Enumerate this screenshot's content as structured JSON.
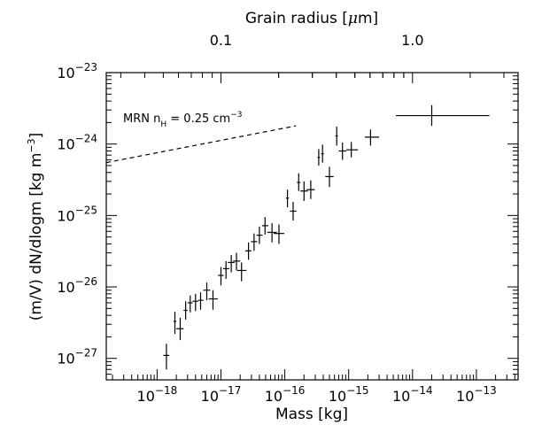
{
  "chart_data": {
    "type": "scatter",
    "xlabel": "Mass [kg]",
    "ylabel": "(m/V) dN/dlogm [kg m",
    "ylabel_sup": "−3",
    "ylabel_end": "]",
    "top_axis_label": "Grain radius [",
    "top_axis_label_mu": "μ",
    "top_axis_label_end": "m]",
    "x_scale": "log",
    "y_scale": "log",
    "xlim": [
      1.6e-19,
      4.5e-13
    ],
    "ylim": [
      5e-28,
      1e-23
    ],
    "x_ticks": [
      {
        "value": 1e-18,
        "base": "10",
        "exp": "−18"
      },
      {
        "value": 1e-17,
        "base": "10",
        "exp": "−17"
      },
      {
        "value": 1e-16,
        "base": "10",
        "exp": "−16"
      },
      {
        "value": 1e-15,
        "base": "10",
        "exp": "−15"
      },
      {
        "value": 1e-14,
        "base": "10",
        "exp": "−14"
      },
      {
        "value": 1e-13,
        "base": "10",
        "exp": "−13"
      }
    ],
    "y_ticks": [
      {
        "value": 1e-27,
        "base": "10",
        "exp": "−27"
      },
      {
        "value": 1e-26,
        "base": "10",
        "exp": "−26"
      },
      {
        "value": 1e-25,
        "base": "10",
        "exp": "−25"
      },
      {
        "value": 1e-24,
        "base": "10",
        "exp": "−24"
      },
      {
        "value": 1e-23,
        "base": "10",
        "exp": "−23"
      }
    ],
    "top_ticks": [
      {
        "label": "0.1",
        "mass": 1e-17
      },
      {
        "label": "1.0",
        "mass": 1e-14
      }
    ],
    "annotation": {
      "text": "MRN n",
      "sub": "H",
      "text_end": " = 0.25 cm",
      "sup": "−3"
    },
    "mrn_line": {
      "x": [
        1.6e-19,
        1.5e-16
      ],
      "y": [
        5.5e-25,
        1.8e-24
      ]
    },
    "points": [
      {
        "x": 1.4e-18,
        "y": 1.1e-27,
        "xerr": [
          1.25e-18,
          1.55e-18
        ],
        "yerr": [
          7e-28,
          1.6e-27
        ]
      },
      {
        "x": 1.9e-18,
        "y": 3.3e-27,
        "xerr": [
          1.8e-18,
          2e-18
        ],
        "yerr": [
          2.2e-27,
          4.5e-27
        ]
      },
      {
        "x": 2.3e-18,
        "y": 2.6e-27,
        "xerr": [
          2e-18,
          2.6e-18
        ],
        "yerr": [
          1.8e-27,
          3.7e-27
        ]
      },
      {
        "x": 2.8e-18,
        "y": 4.7e-27,
        "xerr": [
          2.6e-18,
          3e-18
        ],
        "yerr": [
          3.5e-27,
          6.3e-27
        ]
      },
      {
        "x": 3.3e-18,
        "y": 6e-27,
        "xerr": [
          3e-18,
          3.6e-18
        ],
        "yerr": [
          4.4e-27,
          7.6e-27
        ]
      },
      {
        "x": 4e-18,
        "y": 6.3e-27,
        "xerr": [
          3.6e-18,
          4.4e-18
        ],
        "yerr": [
          4.6e-27,
          8e-27
        ]
      },
      {
        "x": 4.8e-18,
        "y": 6.5e-27,
        "xerr": [
          4.4e-18,
          5.3e-18
        ],
        "yerr": [
          4.8e-27,
          8.4e-27
        ]
      },
      {
        "x": 6e-18,
        "y": 9e-27,
        "xerr": [
          5.3e-18,
          6.8e-18
        ],
        "yerr": [
          6.5e-27,
          1.15e-26
        ]
      },
      {
        "x": 7.5e-18,
        "y": 6.8e-27,
        "xerr": [
          6.4e-18,
          8.9e-18
        ],
        "yerr": [
          4.8e-27,
          9e-27
        ]
      },
      {
        "x": 1e-17,
        "y": 1.45e-26,
        "xerr": [
          9e-18,
          1.1e-17
        ],
        "yerr": [
          1.05e-26,
          1.9e-26
        ]
      },
      {
        "x": 1.2e-17,
        "y": 1.8e-26,
        "xerr": [
          1.08e-17,
          1.35e-17
        ],
        "yerr": [
          1.3e-26,
          2.3e-26
        ]
      },
      {
        "x": 1.45e-17,
        "y": 2.2e-26,
        "xerr": [
          1.28e-17,
          1.63e-17
        ],
        "yerr": [
          1.6e-26,
          2.8e-26
        ]
      },
      {
        "x": 1.75e-17,
        "y": 2.3e-26,
        "xerr": [
          1.55e-17,
          2e-17
        ],
        "yerr": [
          1.7e-26,
          3e-26
        ]
      },
      {
        "x": 2.1e-17,
        "y": 1.7e-26,
        "xerr": [
          1.8e-17,
          2.5e-17
        ],
        "yerr": [
          1.2e-26,
          2.2e-26
        ]
      },
      {
        "x": 2.7e-17,
        "y": 3.2e-26,
        "xerr": [
          2.4e-17,
          3e-17
        ],
        "yerr": [
          2.4e-26,
          4.2e-26
        ]
      },
      {
        "x": 3.3e-17,
        "y": 4.3e-26,
        "xerr": [
          2.95e-17,
          3.7e-17
        ],
        "yerr": [
          3.2e-26,
          5.6e-26
        ]
      },
      {
        "x": 4e-17,
        "y": 5.3e-26,
        "xerr": [
          3.6e-17,
          4.5e-17
        ],
        "yerr": [
          4e-26,
          7e-26
        ]
      },
      {
        "x": 4.9e-17,
        "y": 7.2e-26,
        "xerr": [
          4.4e-17,
          5.5e-17
        ],
        "yerr": [
          5.4e-26,
          9.5e-26
        ]
      },
      {
        "x": 6.3e-17,
        "y": 5.8e-26,
        "xerr": [
          5.3e-17,
          7.5e-17
        ],
        "yerr": [
          4.2e-26,
          7.8e-26
        ]
      },
      {
        "x": 8.1e-17,
        "y": 5.6e-26,
        "xerr": [
          6.7e-17,
          9.8e-17
        ],
        "yerr": [
          4e-26,
          7.5e-26
        ]
      },
      {
        "x": 1.1e-16,
        "y": 1.75e-25,
        "xerr": [
          1.04e-16,
          1.16e-16
        ],
        "yerr": [
          1.3e-25,
          2.3e-25
        ]
      },
      {
        "x": 1.35e-16,
        "y": 1.15e-25,
        "xerr": [
          1.2e-16,
          1.52e-16
        ],
        "yerr": [
          8.5e-26,
          1.55e-25
        ]
      },
      {
        "x": 1.65e-16,
        "y": 2.9e-25,
        "xerr": [
          1.55e-16,
          1.76e-16
        ],
        "yerr": [
          2.2e-25,
          3.9e-25
        ]
      },
      {
        "x": 2e-16,
        "y": 2.2e-25,
        "xerr": [
          1.75e-16,
          2.3e-16
        ],
        "yerr": [
          1.6e-25,
          3e-25
        ]
      },
      {
        "x": 2.55e-16,
        "y": 2.3e-25,
        "xerr": [
          2.2e-16,
          2.95e-16
        ],
        "yerr": [
          1.7e-25,
          3.1e-25
        ]
      },
      {
        "x": 3.4e-16,
        "y": 6.5e-25,
        "xerr": [
          3.25e-16,
          3.55e-16
        ],
        "yerr": [
          5e-25,
          8.5e-25
        ]
      },
      {
        "x": 3.9e-16,
        "y": 7.3e-25,
        "xerr": [
          3.7e-16,
          4.1e-16
        ],
        "yerr": [
          5.5e-25,
          9.8e-25
        ]
      },
      {
        "x": 5e-16,
        "y": 3.5e-25,
        "xerr": [
          4.3e-16,
          5.8e-16
        ],
        "yerr": [
          2.5e-25,
          4.8e-25
        ]
      },
      {
        "x": 6.5e-16,
        "y": 1.3e-24,
        "xerr": [
          6.2e-16,
          6.8e-16
        ],
        "yerr": [
          9.5e-25,
          1.75e-24
        ]
      },
      {
        "x": 8e-16,
        "y": 8e-25,
        "xerr": [
          7e-16,
          9.2e-16
        ],
        "yerr": [
          6e-25,
          1.05e-24
        ]
      },
      {
        "x": 1.1e-15,
        "y": 8.3e-25,
        "xerr": [
          9.2e-16,
          1.4e-15
        ],
        "yerr": [
          6.5e-25,
          1.07e-24
        ]
      },
      {
        "x": 2.2e-15,
        "y": 1.25e-24,
        "xerr": [
          1.8e-15,
          3e-15
        ],
        "yerr": [
          9.5e-25,
          1.6e-24
        ]
      },
      {
        "x": 2e-14,
        "y": 2.5e-24,
        "xerr": [
          5.5e-15,
          1.6e-13
        ],
        "yerr": [
          1.8e-24,
          3.5e-24
        ]
      }
    ]
  }
}
